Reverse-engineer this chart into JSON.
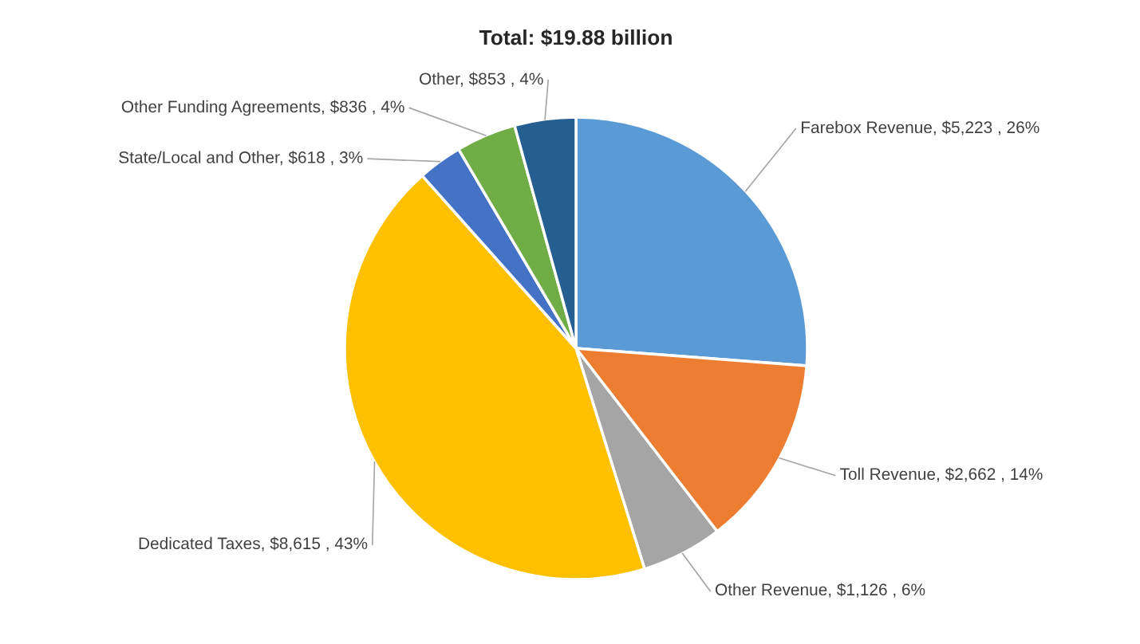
{
  "chart_data": {
    "type": "pie",
    "title": "Total: $19.88 billion",
    "categories": [
      "Farebox Revenue",
      "Toll Revenue",
      "Other Revenue",
      "Dedicated Taxes",
      "State/Local and Other",
      "Other Funding Agreements",
      "Other"
    ],
    "values": [
      5223,
      2662,
      1126,
      8615,
      618,
      836,
      853
    ],
    "value_labels": [
      "$5,223 , 26%",
      "$2,662 , 14%",
      "$1,126 , 6%",
      "$8,615 , 43%",
      "$618 , 3%",
      "$836 , 4%",
      "$853 , 4%"
    ],
    "colors": [
      "#5b9bd5",
      "#ed7d31",
      "#a5a5a5",
      "#ffc000",
      "#4472c4",
      "#70ad47",
      "#255e91"
    ]
  }
}
